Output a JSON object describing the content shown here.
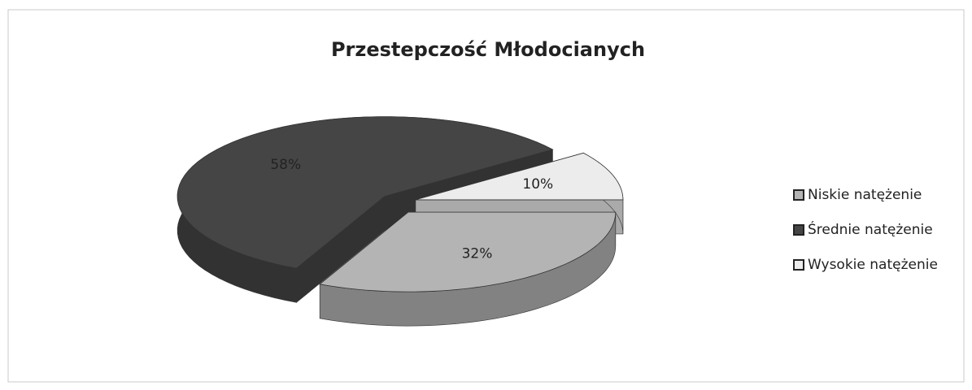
{
  "chart_data": {
    "type": "pie",
    "title": "Przestepczość Młodocianych",
    "categories": [
      "Niskie natężenie",
      "Średnie natężenie",
      "Wysokie natężenie"
    ],
    "values": [
      32,
      58,
      10
    ],
    "value_labels": [
      "32%",
      "58%",
      "10%"
    ],
    "colors": [
      "#b4b4b4",
      "#454545",
      "#ececec"
    ],
    "legend": "right"
  }
}
